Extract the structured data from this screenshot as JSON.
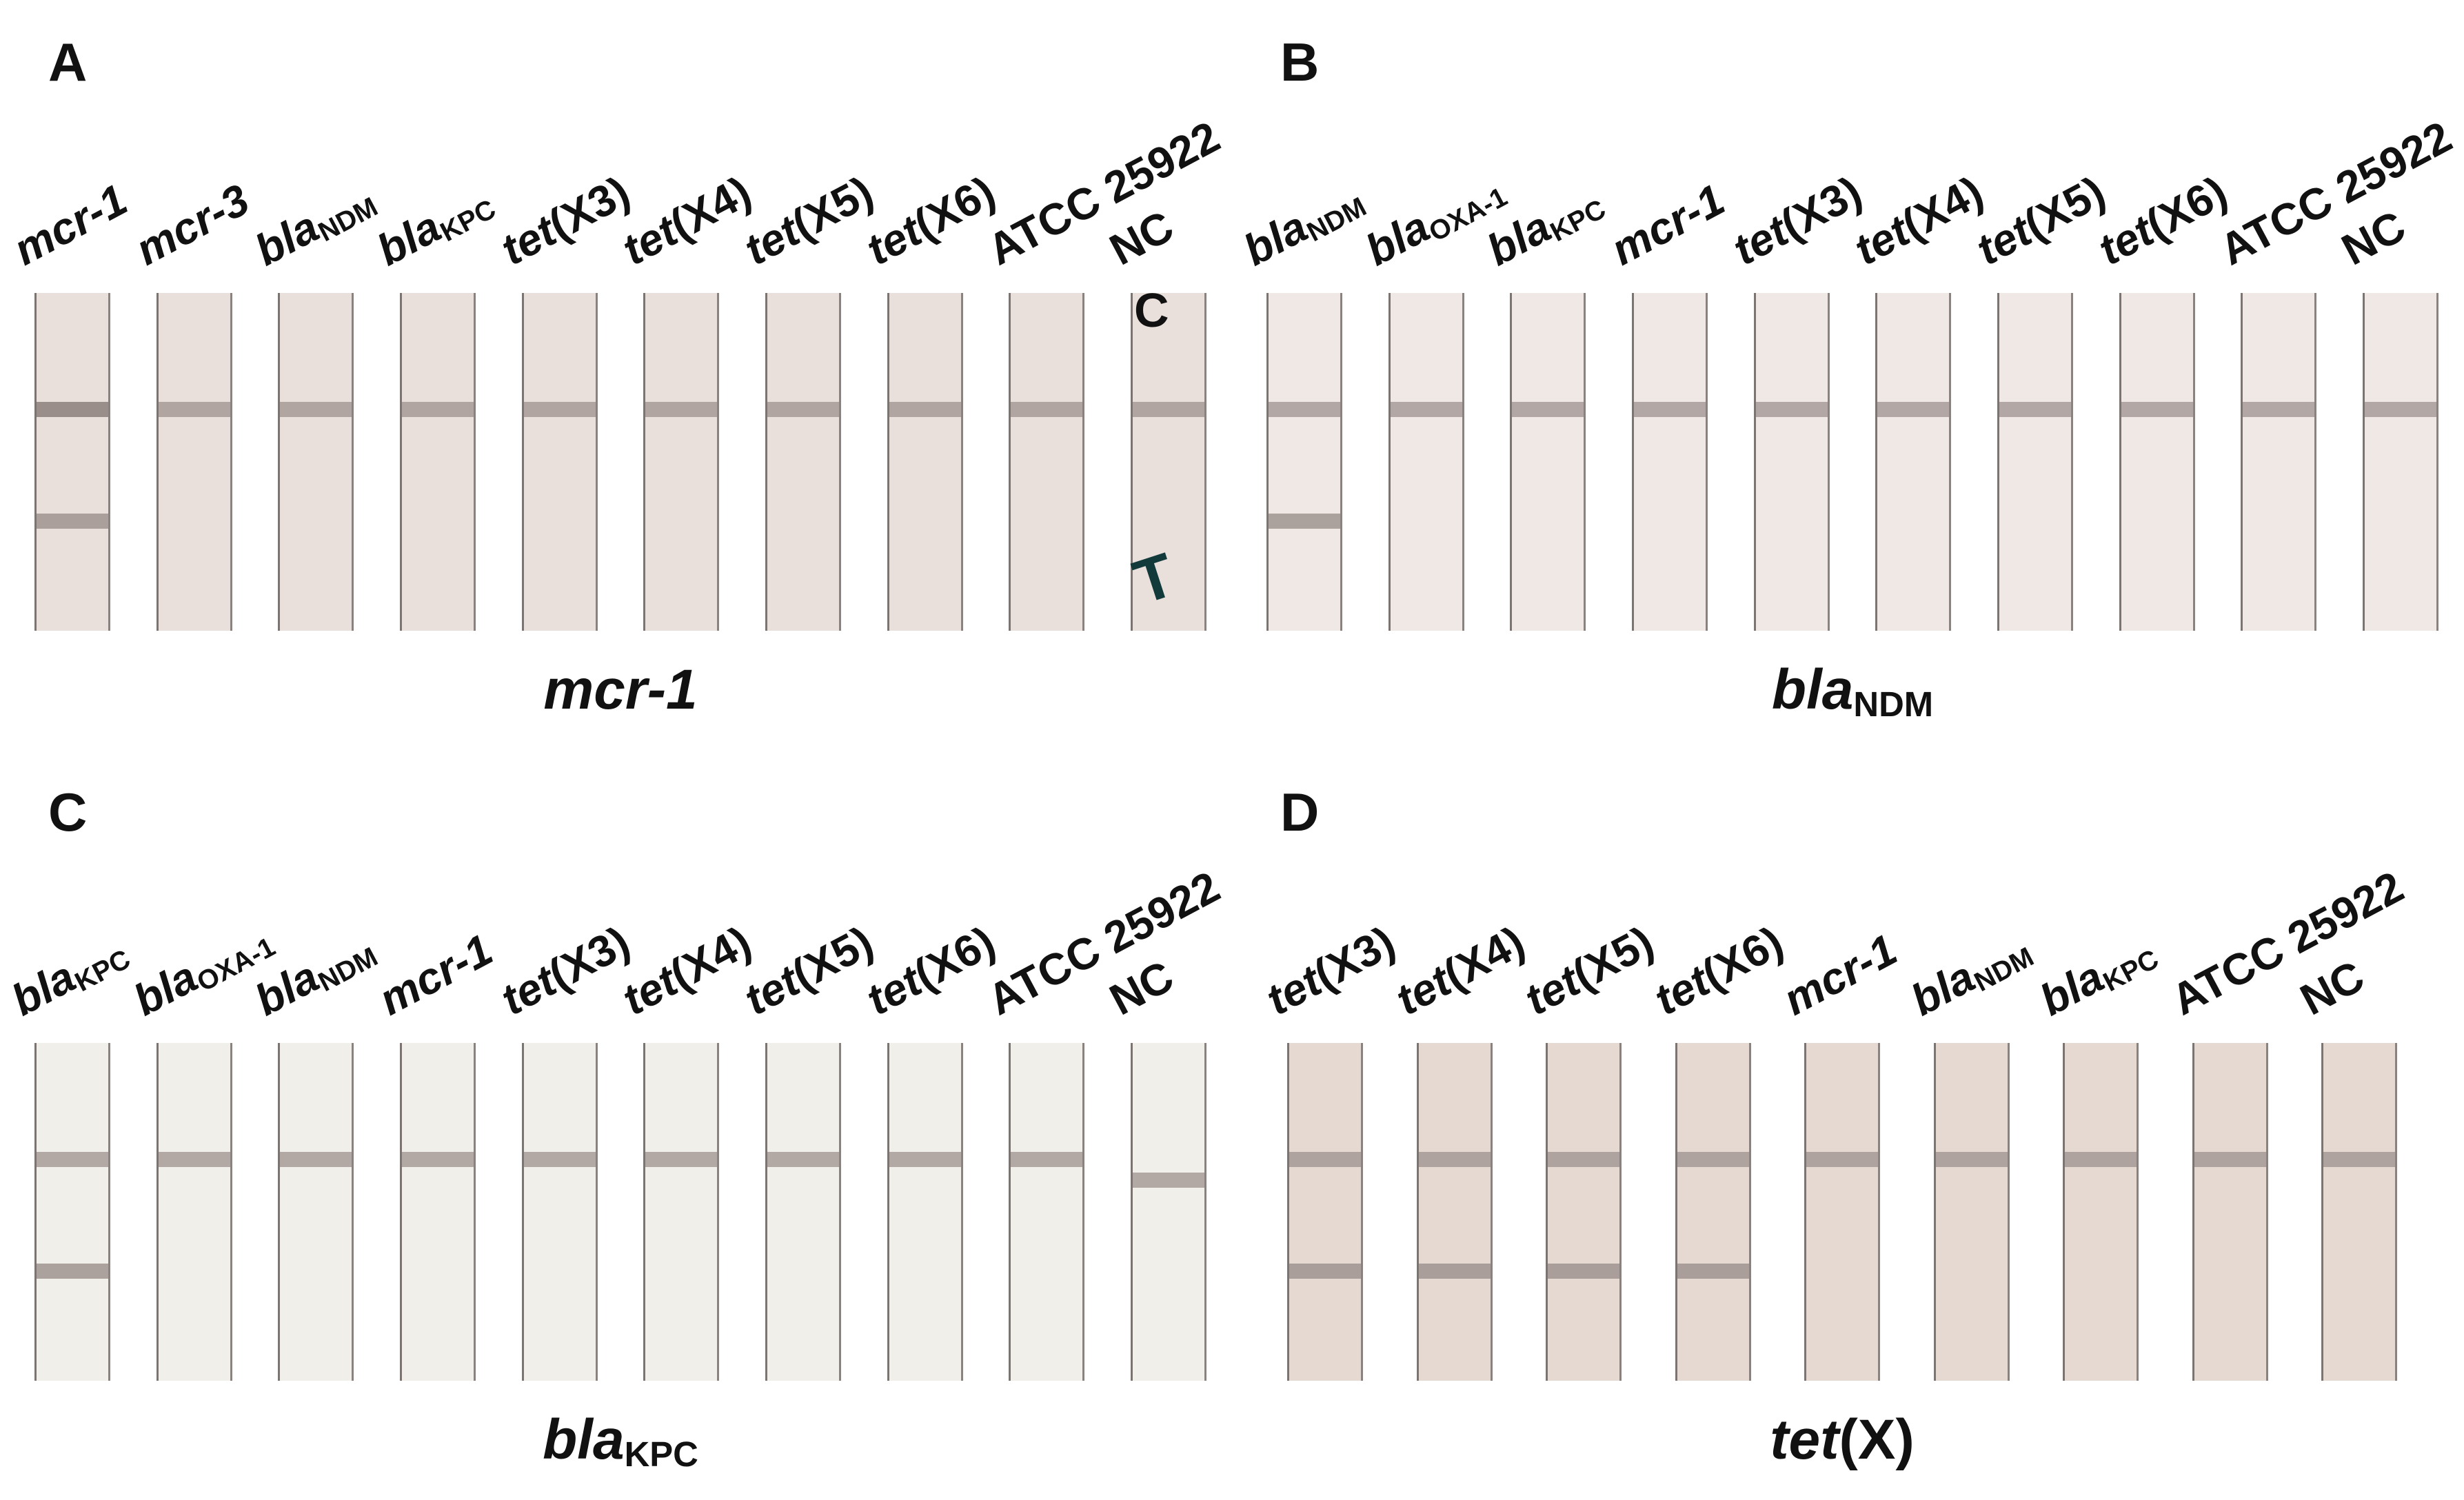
{
  "panels": [
    {
      "letter": "A",
      "title": {
        "italic": "mcr-1",
        "sub": "",
        "tail": ""
      },
      "background": "#e9e0dc",
      "marks": [
        {
          "text": "C",
          "color": "#111111"
        },
        {
          "text": "T",
          "color": "#123a3a"
        }
      ],
      "lanes": [
        {
          "italic": "mcr-1",
          "sub": "",
          "tail": "",
          "control": 1,
          "test": 1
        },
        {
          "italic": "mcr-3",
          "sub": "",
          "tail": "",
          "control": 1,
          "test": 0
        },
        {
          "italic": "bla",
          "sub": "NDM",
          "tail": "",
          "control": 1,
          "test": 0
        },
        {
          "italic": "bla",
          "sub": "KPC",
          "tail": "",
          "control": 1,
          "test": 0
        },
        {
          "italic": "tet",
          "sub": "",
          "tail": "(X3)",
          "control": 1,
          "test": 0
        },
        {
          "italic": "tet",
          "sub": "",
          "tail": "(X4)",
          "control": 1,
          "test": 0
        },
        {
          "italic": "tet",
          "sub": "",
          "tail": "(X5)",
          "control": 1,
          "test": 0
        },
        {
          "italic": "tet",
          "sub": "",
          "tail": "(X6)",
          "control": 1,
          "test": 0
        },
        {
          "italic": "",
          "sub": "",
          "tail": "ATCC 25922",
          "control": 1,
          "test": 0
        },
        {
          "italic": "",
          "sub": "",
          "tail": "NC",
          "control": 1,
          "test": 0
        }
      ]
    },
    {
      "letter": "B",
      "title": {
        "italic": "bla",
        "sub": "NDM",
        "tail": ""
      },
      "background": "#efe8e5",
      "marks": [],
      "lanes": [
        {
          "italic": "bla",
          "sub": "NDM",
          "tail": "",
          "control": 1,
          "test": 1
        },
        {
          "italic": "bla",
          "sub": "OXA-1",
          "tail": "",
          "control": 1,
          "test": 0
        },
        {
          "italic": "bla",
          "sub": "KPC",
          "tail": "",
          "control": 1,
          "test": 0
        },
        {
          "italic": "mcr-1",
          "sub": "",
          "tail": "",
          "control": 1,
          "test": 0
        },
        {
          "italic": "tet",
          "sub": "",
          "tail": "(X3)",
          "control": 1,
          "test": 0
        },
        {
          "italic": "tet",
          "sub": "",
          "tail": "(X4)",
          "control": 1,
          "test": 0
        },
        {
          "italic": "tet",
          "sub": "",
          "tail": "(X5)",
          "control": 1,
          "test": 0
        },
        {
          "italic": "tet",
          "sub": "",
          "tail": "(X6)",
          "control": 1,
          "test": 0
        },
        {
          "italic": "",
          "sub": "",
          "tail": "ATCC 25922",
          "control": 1,
          "test": 0
        },
        {
          "italic": "",
          "sub": "",
          "tail": "NC",
          "control": 1,
          "test": 0
        }
      ]
    },
    {
      "letter": "C",
      "title": {
        "italic": "bla",
        "sub": "KPC",
        "tail": ""
      },
      "background": "#f1efea",
      "marks": [],
      "lanes": [
        {
          "italic": "bla",
          "sub": "KPC",
          "tail": "",
          "control": 1,
          "test": 1
        },
        {
          "italic": "bla",
          "sub": "OXA-1",
          "tail": "",
          "control": 1,
          "test": 0
        },
        {
          "italic": "bla",
          "sub": "NDM",
          "tail": "",
          "control": 1,
          "test": 0
        },
        {
          "italic": "mcr-1",
          "sub": "",
          "tail": "",
          "control": 1,
          "test": 0
        },
        {
          "italic": "tet",
          "sub": "",
          "tail": "(X3)",
          "control": 1,
          "test": 0
        },
        {
          "italic": "tet",
          "sub": "",
          "tail": "(X4)",
          "control": 1,
          "test": 0
        },
        {
          "italic": "tet",
          "sub": "",
          "tail": "(X5)",
          "control": 1,
          "test": 0
        },
        {
          "italic": "tet",
          "sub": "",
          "tail": "(X6)",
          "control": 1,
          "test": 0
        },
        {
          "italic": "",
          "sub": "",
          "tail": "ATCC 25922",
          "control": 1,
          "test": 0
        },
        {
          "italic": "",
          "sub": "",
          "tail": "NC",
          "control": 1,
          "test": 0
        }
      ]
    },
    {
      "letter": "D",
      "title": {
        "italic": "tet",
        "sub": "",
        "tail": "(X)"
      },
      "background": "#e6d9d2",
      "marks": [],
      "lanes": [
        {
          "italic": "tet",
          "sub": "",
          "tail": "(X3)",
          "control": 1,
          "test": 1
        },
        {
          "italic": "tet",
          "sub": "",
          "tail": "(X4)",
          "control": 1,
          "test": 1
        },
        {
          "italic": "tet",
          "sub": "",
          "tail": "(X5)",
          "control": 1,
          "test": 1
        },
        {
          "italic": "tet",
          "sub": "",
          "tail": "(X6)",
          "control": 1,
          "test": 1
        },
        {
          "italic": "mcr-1",
          "sub": "",
          "tail": "",
          "control": 1,
          "test": 0
        },
        {
          "italic": "bla",
          "sub": "NDM",
          "tail": "",
          "control": 1,
          "test": 0
        },
        {
          "italic": "bla",
          "sub": "KPC",
          "tail": "",
          "control": 1,
          "test": 0
        },
        {
          "italic": "",
          "sub": "",
          "tail": "ATCC 25922",
          "control": 1,
          "test": 0
        },
        {
          "italic": "",
          "sub": "",
          "tail": "NC",
          "control": 1,
          "test": 0
        }
      ]
    }
  ],
  "band_color": "#9a8e8b"
}
